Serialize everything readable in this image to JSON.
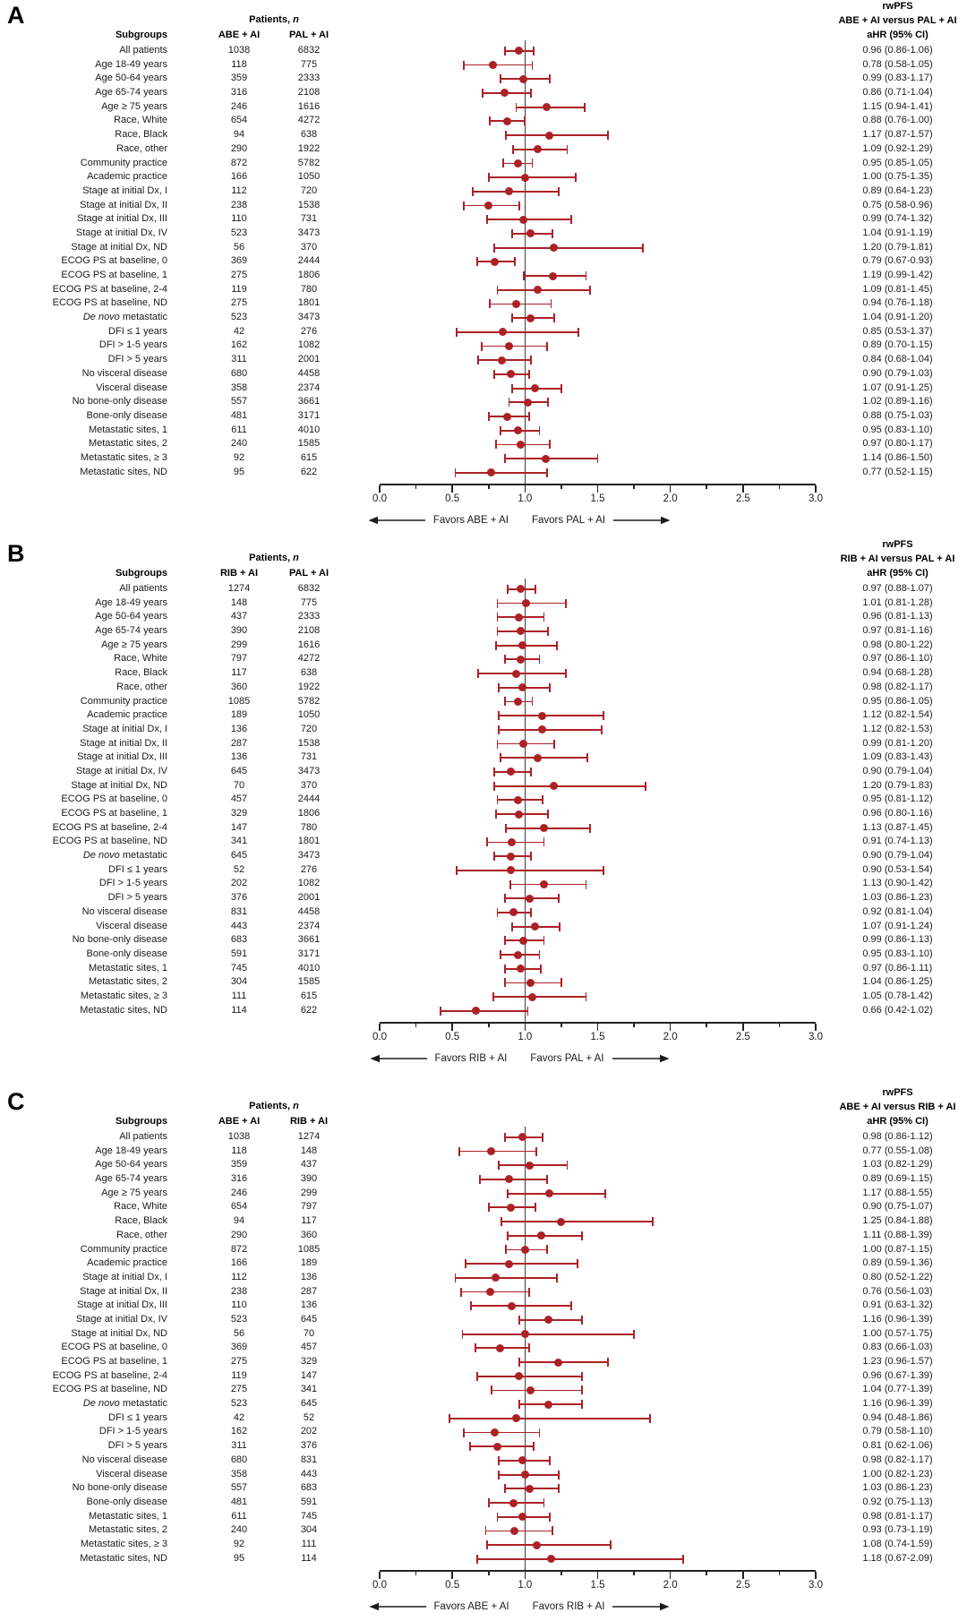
{
  "figure": {
    "patients_header_prefix": "Patients, ",
    "patients_header_n": "n",
    "subgroups_header": "Subgroups",
    "italic_phrase": "De novo",
    "axis_tick_labels": [
      "0.0",
      "0.5",
      "1.0",
      "1.5",
      "2.0",
      "2.5",
      "3.0"
    ]
  },
  "chart_data": [
    {
      "type": "forest",
      "panel_label": "A",
      "outcome_header": "rwPFS",
      "comparison_header": "ABE + AI versus PAL + AI",
      "effect_header": "aHR (95% CI)",
      "col1_header": "ABE + AI",
      "col2_header": "PAL + AI",
      "favors_left": "Favors ABE + AI",
      "favors_right": "Favors PAL + AI",
      "xlim": [
        0,
        3
      ],
      "ref_line": 1.0,
      "x_ticks": [
        0,
        0.5,
        1,
        1.5,
        2,
        2.5,
        3
      ],
      "categories": [
        "All patients",
        "Age 18-49 years",
        "Age 50-64 years",
        "Age 65-74 years",
        "Age ≥ 75 years",
        "Race, White",
        "Race, Black",
        "Race, other",
        "Community practice",
        "Academic practice",
        "Stage at initial Dx, I",
        "Stage at initial Dx, II",
        "Stage at initial Dx, III",
        "Stage at initial Dx, IV",
        "Stage at initial Dx, ND",
        "ECOG PS at baseline, 0",
        "ECOG PS at baseline, 1",
        "ECOG PS at baseline, 2-4",
        "ECOG PS at baseline, ND",
        "De novo metastatic",
        "DFI ≤ 1 years",
        "DFI > 1-5 years",
        "DFI > 5 years",
        "No visceral disease",
        "Visceral disease",
        "No bone-only disease",
        "Bone-only disease",
        "Metastatic sites, 1",
        "Metastatic sites, 2",
        "Metastatic sites, ≥ 3",
        "Metastatic sites, ND"
      ],
      "n_col1": [
        1038,
        118,
        359,
        316,
        246,
        654,
        94,
        290,
        872,
        166,
        112,
        238,
        110,
        523,
        56,
        369,
        275,
        119,
        275,
        523,
        42,
        162,
        311,
        680,
        358,
        557,
        481,
        611,
        240,
        92,
        95
      ],
      "n_col2": [
        6832,
        775,
        2333,
        2108,
        1616,
        4272,
        638,
        1922,
        5782,
        1050,
        720,
        1538,
        731,
        3473,
        370,
        2444,
        1806,
        780,
        1801,
        3473,
        276,
        1082,
        2001,
        4458,
        2374,
        3661,
        3171,
        4010,
        1585,
        615,
        622
      ],
      "hr": [
        0.96,
        0.78,
        0.99,
        0.86,
        1.15,
        0.88,
        1.17,
        1.09,
        0.95,
        1.0,
        0.89,
        0.75,
        0.99,
        1.04,
        1.2,
        0.79,
        1.19,
        1.09,
        0.94,
        1.04,
        0.85,
        0.89,
        0.84,
        0.9,
        1.07,
        1.02,
        0.88,
        0.95,
        0.97,
        1.14,
        0.77
      ],
      "ci_low": [
        0.86,
        0.58,
        0.83,
        0.71,
        0.94,
        0.76,
        0.87,
        0.92,
        0.85,
        0.75,
        0.64,
        0.58,
        0.74,
        0.91,
        0.79,
        0.67,
        0.99,
        0.81,
        0.76,
        0.91,
        0.53,
        0.7,
        0.68,
        0.79,
        0.91,
        0.89,
        0.75,
        0.83,
        0.8,
        0.86,
        0.52
      ],
      "ci_high": [
        1.06,
        1.05,
        1.17,
        1.04,
        1.41,
        1.0,
        1.57,
        1.29,
        1.05,
        1.35,
        1.23,
        0.96,
        1.32,
        1.19,
        1.81,
        0.93,
        1.42,
        1.45,
        1.18,
        1.2,
        1.37,
        1.15,
        1.04,
        1.03,
        1.25,
        1.16,
        1.03,
        1.1,
        1.17,
        1.5,
        1.15
      ]
    },
    {
      "type": "forest",
      "panel_label": "B",
      "outcome_header": "rwPFS",
      "comparison_header": "RIB + AI versus PAL + AI",
      "effect_header": "aHR (95% CI)",
      "col1_header": "RIB + AI",
      "col2_header": "PAL + AI",
      "favors_left": "Favors RIB + AI",
      "favors_right": "Favors PAL + AI",
      "xlim": [
        0,
        3
      ],
      "ref_line": 1.0,
      "x_ticks": [
        0,
        0.5,
        1,
        1.5,
        2,
        2.5,
        3
      ],
      "categories": [
        "All patients",
        "Age 18-49 years",
        "Age 50-64 years",
        "Age 65-74 years",
        "Age ≥ 75 years",
        "Race, White",
        "Race, Black",
        "Race, other",
        "Community practice",
        "Academic practice",
        "Stage at initial Dx, I",
        "Stage at initial Dx, II",
        "Stage at initial Dx, III",
        "Stage at initial Dx, IV",
        "Stage at initial Dx, ND",
        "ECOG PS at baseline, 0",
        "ECOG PS at baseline, 1",
        "ECOG PS at baseline, 2-4",
        "ECOG PS at baseline, ND",
        "De novo metastatic",
        "DFI ≤ 1 years",
        "DFI > 1-5 years",
        "DFI > 5 years",
        "No visceral disease",
        "Visceral disease",
        "No bone-only disease",
        "Bone-only disease",
        "Metastatic sites, 1",
        "Metastatic sites, 2",
        "Metastatic sites, ≥ 3",
        "Metastatic sites, ND"
      ],
      "n_col1": [
        1274,
        148,
        437,
        390,
        299,
        797,
        117,
        360,
        1085,
        189,
        136,
        287,
        136,
        645,
        70,
        457,
        329,
        147,
        341,
        645,
        52,
        202,
        376,
        831,
        443,
        683,
        591,
        745,
        304,
        111,
        114
      ],
      "n_col2": [
        6832,
        775,
        2333,
        2108,
        1616,
        4272,
        638,
        1922,
        5782,
        1050,
        720,
        1538,
        731,
        3473,
        370,
        2444,
        1806,
        780,
        1801,
        3473,
        276,
        1082,
        2001,
        4458,
        2374,
        3661,
        3171,
        4010,
        1585,
        615,
        622
      ],
      "hr": [
        0.97,
        1.01,
        0.96,
        0.97,
        0.98,
        0.97,
        0.94,
        0.98,
        0.95,
        1.12,
        1.12,
        0.99,
        1.09,
        0.9,
        1.2,
        0.95,
        0.96,
        1.13,
        0.91,
        0.9,
        0.9,
        1.13,
        1.03,
        0.92,
        1.07,
        0.99,
        0.95,
        0.97,
        1.04,
        1.05,
        0.66
      ],
      "ci_low": [
        0.88,
        0.81,
        0.81,
        0.81,
        0.8,
        0.86,
        0.68,
        0.82,
        0.86,
        0.82,
        0.82,
        0.81,
        0.83,
        0.79,
        0.79,
        0.81,
        0.8,
        0.87,
        0.74,
        0.79,
        0.53,
        0.9,
        0.86,
        0.81,
        0.91,
        0.86,
        0.83,
        0.86,
        0.86,
        0.78,
        0.42
      ],
      "ci_high": [
        1.07,
        1.28,
        1.13,
        1.16,
        1.22,
        1.1,
        1.28,
        1.17,
        1.05,
        1.54,
        1.53,
        1.2,
        1.43,
        1.04,
        1.83,
        1.12,
        1.16,
        1.45,
        1.13,
        1.04,
        1.54,
        1.42,
        1.23,
        1.04,
        1.24,
        1.13,
        1.1,
        1.11,
        1.25,
        1.42,
        1.02
      ]
    },
    {
      "type": "forest",
      "panel_label": "C",
      "outcome_header": "rwPFS",
      "comparison_header": "ABE + AI versus RIB + AI",
      "effect_header": "aHR (95% CI)",
      "col1_header": "ABE + AI",
      "col2_header": "RIB + AI",
      "favors_left": "Favors ABE + AI",
      "favors_right": "Favors RIB + AI",
      "xlim": [
        0,
        3
      ],
      "ref_line": 1.0,
      "x_ticks": [
        0,
        0.5,
        1,
        1.5,
        2,
        2.5,
        3
      ],
      "categories": [
        "All patients",
        "Age 18-49 years",
        "Age 50-64 years",
        "Age 65-74 years",
        "Age ≥ 75 years",
        "Race, White",
        "Race, Black",
        "Race, other",
        "Community practice",
        "Academic practice",
        "Stage at initial Dx, I",
        "Stage at initial Dx, II",
        "Stage at initial Dx, III",
        "Stage at initial Dx, IV",
        "Stage at initial Dx, ND",
        "ECOG PS at baseline, 0",
        "ECOG PS at baseline, 1",
        "ECOG PS at baseline, 2-4",
        "ECOG PS at baseline, ND",
        "De novo metastatic",
        "DFI ≤ 1 years",
        "DFI > 1-5 years",
        "DFI > 5 years",
        "No visceral disease",
        "Visceral disease",
        "No bone-only disease",
        "Bone-only disease",
        "Metastatic sites, 1",
        "Metastatic sites, 2",
        "Metastatic sites, ≥ 3",
        "Metastatic sites, ND"
      ],
      "n_col1": [
        1038,
        118,
        359,
        316,
        246,
        654,
        94,
        290,
        872,
        166,
        112,
        238,
        110,
        523,
        56,
        369,
        275,
        119,
        275,
        523,
        42,
        162,
        311,
        680,
        358,
        557,
        481,
        611,
        240,
        92,
        95
      ],
      "n_col2": [
        1274,
        148,
        437,
        390,
        299,
        797,
        117,
        360,
        1085,
        189,
        136,
        287,
        136,
        645,
        70,
        457,
        329,
        147,
        341,
        645,
        52,
        202,
        376,
        831,
        443,
        683,
        591,
        745,
        304,
        111,
        114
      ],
      "hr": [
        0.98,
        0.77,
        1.03,
        0.89,
        1.17,
        0.9,
        1.25,
        1.11,
        1.0,
        0.89,
        0.8,
        0.76,
        0.91,
        1.16,
        1.0,
        0.83,
        1.23,
        0.96,
        1.04,
        1.16,
        0.94,
        0.79,
        0.81,
        0.98,
        1.0,
        1.03,
        0.92,
        0.98,
        0.93,
        1.08,
        1.18
      ],
      "ci_low": [
        0.86,
        0.55,
        0.82,
        0.69,
        0.88,
        0.75,
        0.84,
        0.88,
        0.87,
        0.59,
        0.52,
        0.56,
        0.63,
        0.96,
        0.57,
        0.66,
        0.96,
        0.67,
        0.77,
        0.96,
        0.48,
        0.58,
        0.62,
        0.82,
        0.82,
        0.86,
        0.75,
        0.81,
        0.73,
        0.74,
        0.67
      ],
      "ci_high": [
        1.12,
        1.08,
        1.29,
        1.15,
        1.55,
        1.07,
        1.88,
        1.39,
        1.15,
        1.36,
        1.22,
        1.03,
        1.32,
        1.39,
        1.75,
        1.03,
        1.57,
        1.39,
        1.39,
        1.39,
        1.86,
        1.1,
        1.06,
        1.17,
        1.23,
        1.23,
        1.13,
        1.17,
        1.19,
        1.59,
        2.09
      ]
    }
  ],
  "style": {
    "marker_color": "#AC2125",
    "ref_line_color": "#3f3f3f",
    "axis_color": "#222222",
    "text_color": "#1a1a1a"
  }
}
